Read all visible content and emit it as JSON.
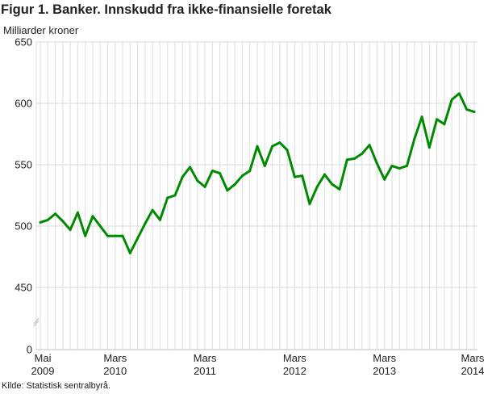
{
  "chart_data": {
    "type": "line",
    "title": "Figur 1. Banker. Innskudd fra ikke-finansielle foretak",
    "ylabel": "Milliarder kroner",
    "xlabel": "",
    "source": "Kilde: Statistisk sentralbyrå.",
    "ylim": [
      0,
      650
    ],
    "y_axis_break": [
      0,
      450
    ],
    "yticks": [
      "0",
      "450",
      "500",
      "550",
      "600",
      "650"
    ],
    "ytick_values": [
      0,
      450,
      500,
      550,
      600,
      650
    ],
    "xticks": [
      {
        "index": 0,
        "line1": "Mai",
        "line2": "2009"
      },
      {
        "index": 10,
        "line1": "Mars",
        "line2": "2010"
      },
      {
        "index": 22,
        "line1": "Mars",
        "line2": "2011"
      },
      {
        "index": 34,
        "line1": "Mars",
        "line2": "2012"
      },
      {
        "index": 46,
        "line1": "Mars",
        "line2": "2013"
      },
      {
        "index": 58,
        "line1": "Mars",
        "line2": "2014"
      }
    ],
    "grid": true,
    "series": [
      {
        "name": "Innskudd fra ikke-finansielle foretak",
        "color": "#008a00",
        "values": [
          503,
          505,
          510,
          504,
          497,
          511,
          492,
          508,
          500,
          492,
          492,
          492,
          478,
          490,
          502,
          513,
          505,
          523,
          525,
          540,
          548,
          537,
          532,
          545,
          543,
          529,
          534,
          541,
          545,
          565,
          549,
          565,
          568,
          562,
          540,
          541,
          518,
          532,
          542,
          534,
          530,
          554,
          555,
          559,
          566,
          551,
          538,
          549,
          547,
          549,
          571,
          589,
          564,
          587,
          583,
          603,
          608,
          595,
          593
        ]
      }
    ]
  }
}
